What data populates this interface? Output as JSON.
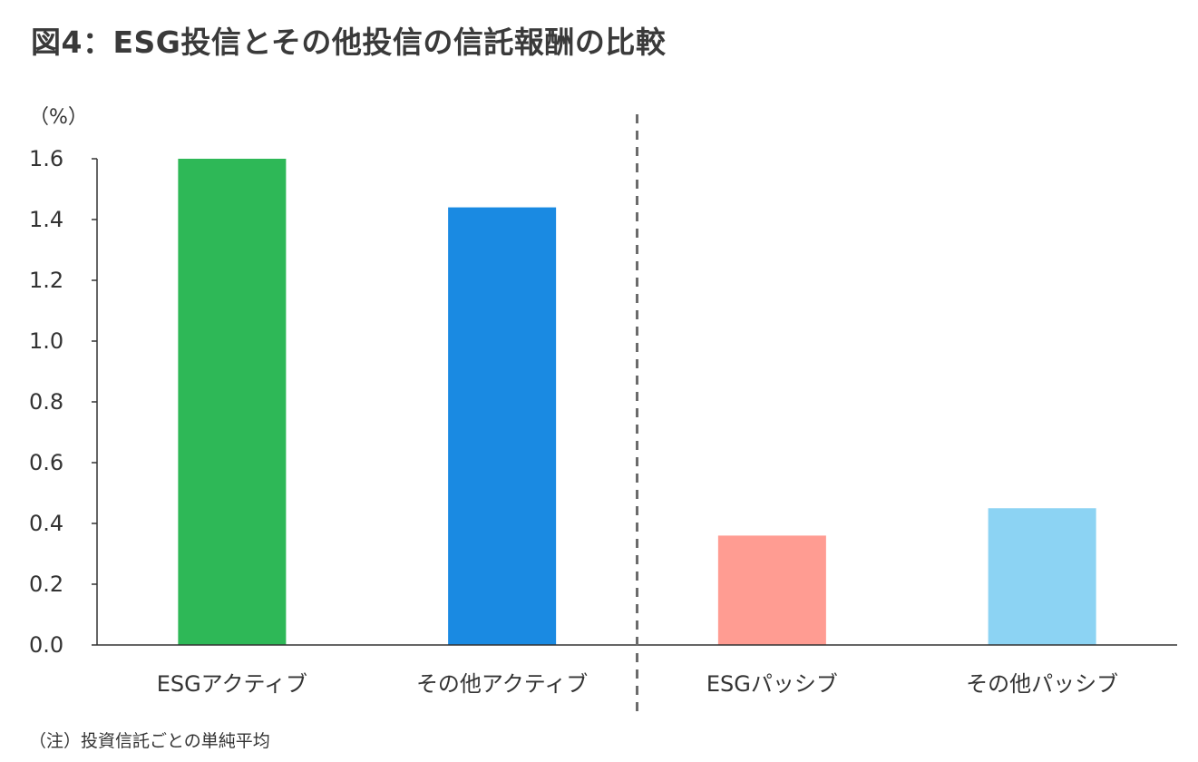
{
  "title": "図4：ESG投信とその他投信の信託報酬の比較",
  "note": "（注）投資信託ごとの単純平均",
  "chart_data": {
    "type": "bar",
    "unit_label": "（%）",
    "categories": [
      "ESGアクティブ",
      "その他アクティブ",
      "ESGパッシブ",
      "その他パッシブ"
    ],
    "values": [
      1.6,
      1.44,
      0.36,
      0.45
    ],
    "colors": [
      "#2eb857",
      "#1a8ae2",
      "#ff9c92",
      "#8cd3f3"
    ],
    "ylim": [
      0,
      1.6
    ],
    "yticks": [
      "0.0",
      "0.2",
      "0.4",
      "0.6",
      "0.8",
      "1.0",
      "1.2",
      "1.4",
      "1.6"
    ],
    "grid": false,
    "divider": "dashed line between 2nd and 3rd category"
  }
}
